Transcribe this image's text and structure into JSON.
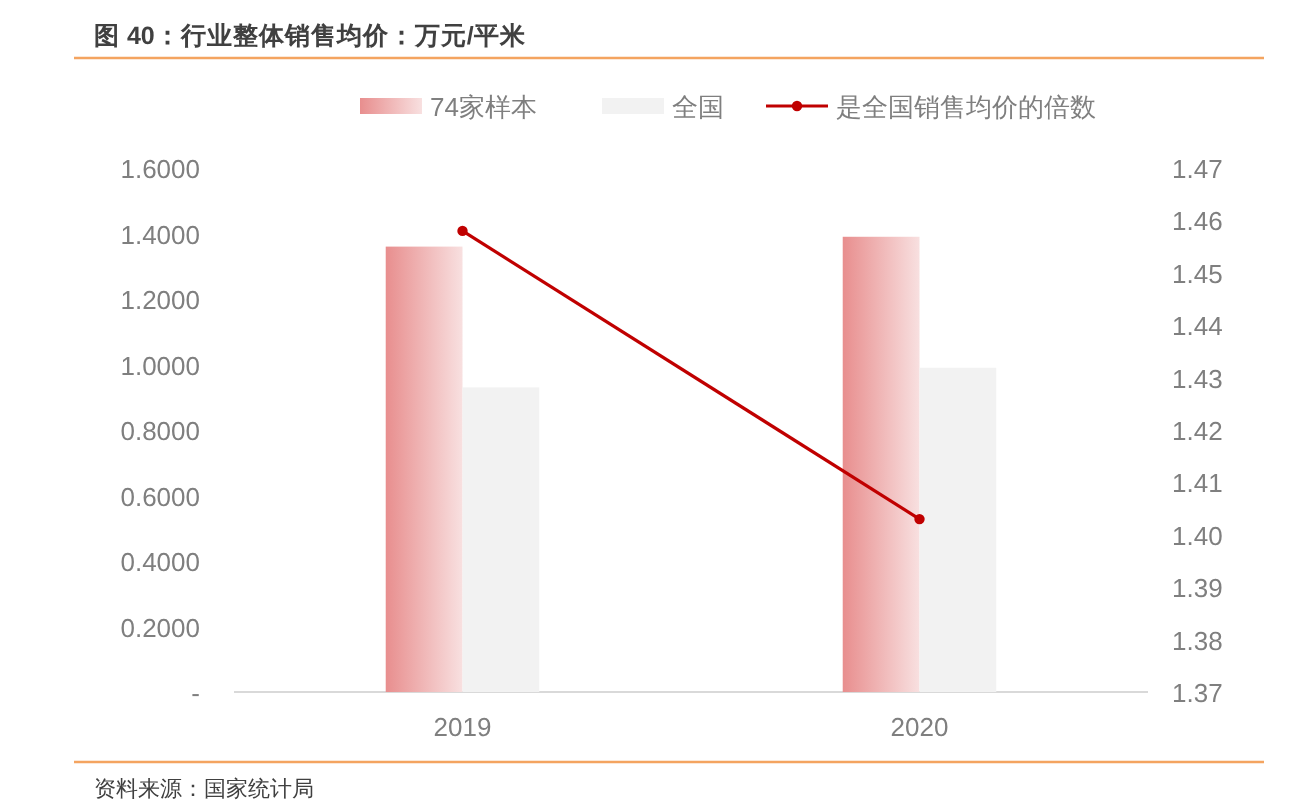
{
  "chart_data": {
    "type": "bar",
    "title": "图 40：行业整体销售均价：万元/平米",
    "categories": [
      "2019",
      "2020"
    ],
    "series": [
      {
        "name": "74家样本",
        "color": "#e88e8e",
        "values": [
          1.36,
          1.39
        ]
      },
      {
        "name": "全国",
        "color": "#f2f2f2",
        "values": [
          0.93,
          0.99
        ]
      },
      {
        "name": "是全国销售均价的倍数",
        "type": "line",
        "axis": "y2",
        "color": "#c00000",
        "values": [
          1.458,
          1.403
        ]
      }
    ],
    "ylim": [
      0,
      1.6
    ],
    "yticks": [
      {
        "value": 0,
        "label": "-"
      },
      {
        "value": 0.2,
        "label": "0.2000"
      },
      {
        "value": 0.4,
        "label": "0.4000"
      },
      {
        "value": 0.6,
        "label": "0.6000"
      },
      {
        "value": 0.8,
        "label": "0.8000"
      },
      {
        "value": 1.0,
        "label": "1.0000"
      },
      {
        "value": 1.2,
        "label": "1.2000"
      },
      {
        "value": 1.4,
        "label": "1.4000"
      },
      {
        "value": 1.6,
        "label": "1.6000"
      }
    ],
    "y2lim": [
      1.37,
      1.47
    ],
    "y2ticks": [
      1.37,
      1.38,
      1.39,
      {
        "value": 1.4,
        "label": "1.40"
      },
      1.41,
      1.42,
      1.43,
      1.44,
      1.45,
      1.46,
      1.47
    ],
    "marker": "circle",
    "legend": "top",
    "annotations": [
      "资料来源：国家统计局"
    ]
  }
}
